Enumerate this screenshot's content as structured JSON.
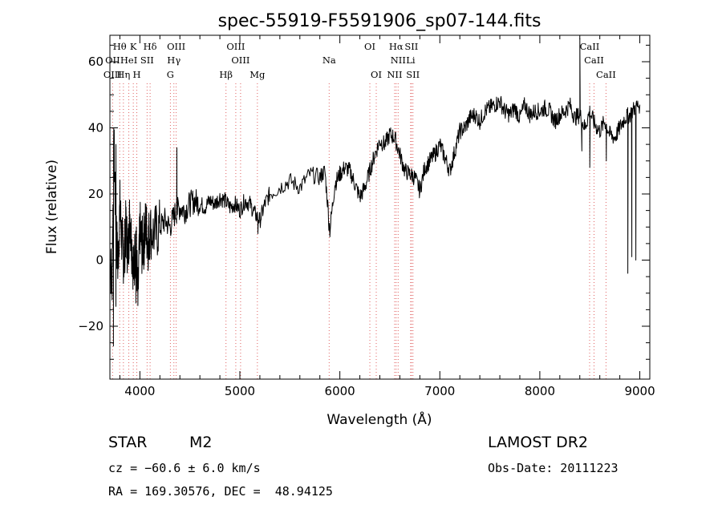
{
  "chart_data": {
    "type": "line",
    "title": "spec-55919-F5591906_sp07-144.fits",
    "xlabel": "Wavelength (Å)",
    "ylabel": "Flux (relative)",
    "xlim": [
      3700,
      9100
    ],
    "ylim": [
      -36,
      68
    ],
    "xticks": [
      4000,
      5000,
      6000,
      7000,
      8000,
      9000
    ],
    "yticks": [
      -20,
      0,
      20,
      40,
      60
    ],
    "grid": false,
    "line_color": "#000000",
    "marker_line_color": "#e06060",
    "series": [
      {
        "x": [
          3700,
          3720,
          3740,
          3760,
          3780,
          3800,
          3820,
          3840,
          3860,
          3880,
          3900,
          3920,
          3940,
          3960,
          3980,
          4000,
          4020,
          4040,
          4060,
          4080,
          4100,
          4150,
          4200,
          4250,
          4300,
          4350,
          4400,
          4450,
          4500,
          4550,
          4600,
          4650,
          4700,
          4750,
          4800,
          4850,
          4900,
          4950,
          5000,
          5050,
          5100,
          5150,
          5200,
          5250,
          5300,
          5400,
          5500,
          5600,
          5700,
          5800,
          5850,
          5900,
          5950,
          6000,
          6050,
          6100,
          6150,
          6200,
          6250,
          6300,
          6350,
          6400,
          6450,
          6500,
          6550,
          6600,
          6650,
          6700,
          6750,
          6800,
          6850,
          6900,
          6950,
          7000,
          7050,
          7100,
          7150,
          7200,
          7250,
          7300,
          7350,
          7400,
          7450,
          7500,
          7550,
          7600,
          7650,
          7700,
          7750,
          7800,
          7850,
          7900,
          7950,
          8000,
          8050,
          8100,
          8150,
          8200,
          8250,
          8300,
          8350,
          8400,
          8450,
          8500,
          8550,
          8600,
          8650,
          8700,
          8750,
          8800,
          8850,
          8900,
          8950,
          9000
        ],
        "y": [
          3,
          -8,
          35,
          12,
          -2,
          16,
          6,
          0,
          10,
          2,
          14,
          4,
          -4,
          8,
          -13,
          10,
          4,
          6,
          11,
          5,
          9,
          8,
          10,
          12,
          10,
          14,
          16,
          15,
          17,
          18,
          17,
          16,
          18,
          17,
          19,
          18,
          16,
          17,
          15,
          18,
          17,
          14,
          12,
          17,
          20,
          22,
          24,
          22,
          26,
          25,
          27,
          9,
          23,
          26,
          28,
          27,
          23,
          19,
          22,
          27,
          32,
          36,
          35,
          38,
          37,
          32,
          27,
          26,
          25,
          21,
          28,
          30,
          32,
          35,
          31,
          27,
          33,
          39,
          40,
          43,
          44,
          42,
          45,
          46,
          47,
          48,
          45,
          44,
          46,
          43,
          47,
          44,
          45,
          45,
          46,
          45,
          42,
          44,
          45,
          47,
          43,
          44,
          40,
          45,
          41,
          39,
          42,
          38,
          37,
          40,
          43,
          44,
          46,
          47
        ]
      }
    ],
    "dips": [
      {
        "x": 3735,
        "y": -26
      },
      {
        "x": 3760,
        "y": -14
      },
      {
        "x": 3960,
        "y": -13
      },
      {
        "x": 5180,
        "y": 8
      },
      {
        "x": 5890,
        "y": 9
      },
      {
        "x": 8420,
        "y": 33
      },
      {
        "x": 8500,
        "y": 28
      },
      {
        "x": 8665,
        "y": 30
      },
      {
        "x": 8880,
        "y": -4
      },
      {
        "x": 8920,
        "y": 1
      },
      {
        "x": 8960,
        "y": 0
      }
    ],
    "spikes": [
      {
        "x": 3760,
        "y": 35
      },
      {
        "x": 4370,
        "y": 34
      },
      {
        "x": 8400,
        "y": 67
      }
    ],
    "lines": [
      {
        "label": "Hθ",
        "x": 3798,
        "row": 0
      },
      {
        "label": "OII",
        "x": 3727,
        "row": 1
      },
      {
        "label": "OIII",
        "x": 3727,
        "row": 2
      },
      {
        "label": "K",
        "x": 3934,
        "row": 0
      },
      {
        "label": "HeI",
        "x": 3889,
        "row": 1
      },
      {
        "label": "Hη",
        "x": 3835,
        "row": 2
      },
      {
        "label": "SII",
        "x": 4072,
        "row": 1
      },
      {
        "label": "H",
        "x": 3969,
        "row": 2
      },
      {
        "label": "Hδ",
        "x": 4102,
        "row": 0
      },
      {
        "label": "OIII",
        "x": 4363,
        "row": 0
      },
      {
        "label": "Hγ",
        "x": 4340,
        "row": 1
      },
      {
        "label": "G",
        "x": 4305,
        "row": 2
      },
      {
        "label": "OIII",
        "x": 4959,
        "row": 0
      },
      {
        "label": "OIII",
        "x": 5007,
        "row": 1
      },
      {
        "label": "Hβ",
        "x": 4861,
        "row": 2
      },
      {
        "label": "Mg",
        "x": 5175,
        "row": 2
      },
      {
        "label": "Na",
        "x": 5893,
        "row": 1
      },
      {
        "label": "OI",
        "x": 6300,
        "row": 0
      },
      {
        "label": "OI",
        "x": 6364,
        "row": 2
      },
      {
        "label": "Hα",
        "x": 6563,
        "row": 0
      },
      {
        "label": "SII",
        "x": 6716,
        "row": 0
      },
      {
        "label": "NII",
        "x": 6583,
        "row": 1
      },
      {
        "label": "Li",
        "x": 6708,
        "row": 1
      },
      {
        "label": "NII",
        "x": 6548,
        "row": 2
      },
      {
        "label": "SII",
        "x": 6731,
        "row": 2
      },
      {
        "label": "CaII",
        "x": 8498,
        "row": 0
      },
      {
        "label": "CaII",
        "x": 8542,
        "row": 1
      },
      {
        "label": "CaII",
        "x": 8662,
        "row": 2
      }
    ]
  },
  "info": {
    "object_type": "STAR",
    "subclass": "M2",
    "survey": "LAMOST DR2",
    "cz": "cz = −60.6 ± 6.0 km/s",
    "obs_date": "Obs-Date: 20111223",
    "coords": "RA = 169.30576, DEC =  48.94125"
  }
}
